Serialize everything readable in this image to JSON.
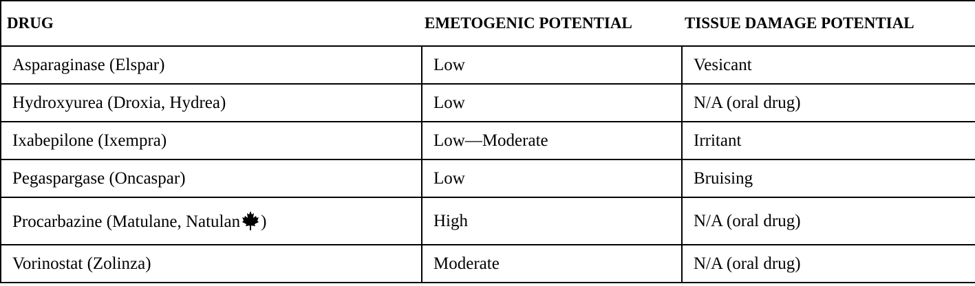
{
  "table": {
    "header": [
      "DRUG",
      "EMETOGENIC POTENTIAL",
      "TISSUE DAMAGE POTENTIAL"
    ],
    "rows": [
      [
        "Asparaginase (Elspar)",
        "Low",
        "Vesicant"
      ],
      [
        "Hydroxyurea (Droxia, Hydrea)",
        "Low",
        "N/A (oral drug)"
      ],
      [
        "Ixabepilone (Ixempra)",
        "Low—Moderate",
        "Irritant"
      ],
      [
        "Pegaspargase (Oncaspar)",
        "Low",
        "Bruising"
      ],
      [
        [
          "Procarbazine (Matulane, Natulan",
          ")"
        ],
        "High",
        "N/A (oral drug)"
      ],
      [
        "Vorinostat (Zolinza)",
        "Moderate",
        "N/A (oral drug)"
      ]
    ]
  }
}
